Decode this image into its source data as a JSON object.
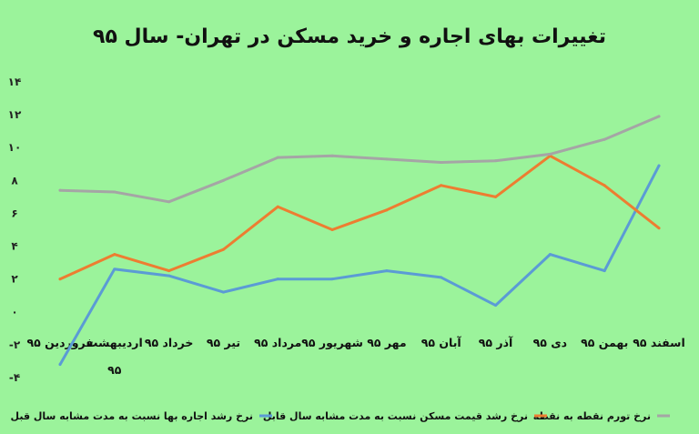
{
  "chart_data": {
    "type": "line",
    "title": "تغییرات بهای اجاره و خرید مسکن در تهران- سال ۹۵",
    "categories": [
      "فروردین ۹۵",
      "اردیبهشت ۹۵",
      "خرداد ۹۵",
      "تیر ۹۵",
      "مرداد ۹۵",
      "شهریور ۹۵",
      "مهر ۹۵",
      "آبان ۹۵",
      "آذر ۹۵",
      "دی ۹۵",
      "بهمن ۹۵",
      "اسفند ۹۵"
    ],
    "y_ticks": [
      "-۴",
      "-۲",
      "۰",
      "۲",
      "۴",
      "۶",
      "۸",
      "۱۰",
      "۱۲",
      "۱۴"
    ],
    "ylim": [
      -4,
      14
    ],
    "grid": false,
    "legend_position": "bottom",
    "series": [
      {
        "name": "نرخ رشد اجاره بها نسبت به مدت مشابه سال قبل",
        "color": "#5B9BD5",
        "values": [
          -3.2,
          2.6,
          2.2,
          1.2,
          2.0,
          2.0,
          2.5,
          2.1,
          0.4,
          3.5,
          2.5,
          8.9
        ]
      },
      {
        "name": "نرخ رشد قیمت مسکن نسبت به مدت مشابه سال قابل",
        "color": "#ED7D31",
        "values": [
          2.0,
          3.5,
          2.5,
          3.8,
          6.4,
          5.0,
          6.2,
          7.7,
          7.0,
          9.5,
          7.7,
          5.1
        ]
      },
      {
        "name": "نرخ تورم نقطه به نقطه",
        "color": "#A5A5A5",
        "values": [
          7.4,
          7.3,
          6.7,
          8.0,
          9.4,
          9.5,
          9.3,
          9.1,
          9.2,
          9.6,
          10.5,
          11.9
        ]
      }
    ]
  }
}
